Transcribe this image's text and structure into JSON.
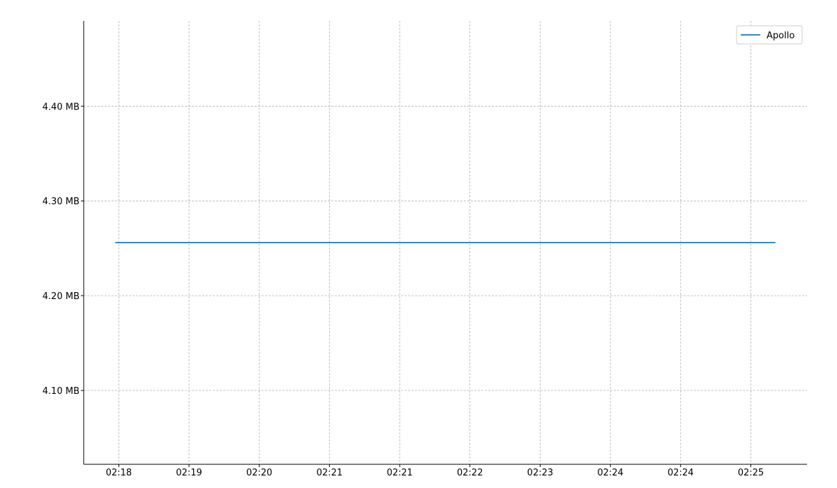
{
  "chart_data": {
    "type": "line",
    "title": "",
    "xlabel": "",
    "ylabel": "",
    "x_tick_labels": [
      "02:18",
      "02:19",
      "02:20",
      "02:21",
      "02:21",
      "02:22",
      "02:23",
      "02:24",
      "02:24",
      "02:25"
    ],
    "y_tick_labels": [
      "4.10 MB",
      "4.20 MB",
      "4.30 MB",
      "4.40 MB"
    ],
    "y_ticks": [
      4.1,
      4.2,
      4.3,
      4.4
    ],
    "ylim": [
      4.022,
      4.49
    ],
    "xlim": [
      -0.5,
      9.8
    ],
    "grid": true,
    "legend_position": "top-right",
    "series": [
      {
        "name": "Apollo",
        "color": "#1f77b4",
        "x": [
          -0.05,
          9.35
        ],
        "y": [
          4.256,
          4.256
        ]
      }
    ]
  }
}
